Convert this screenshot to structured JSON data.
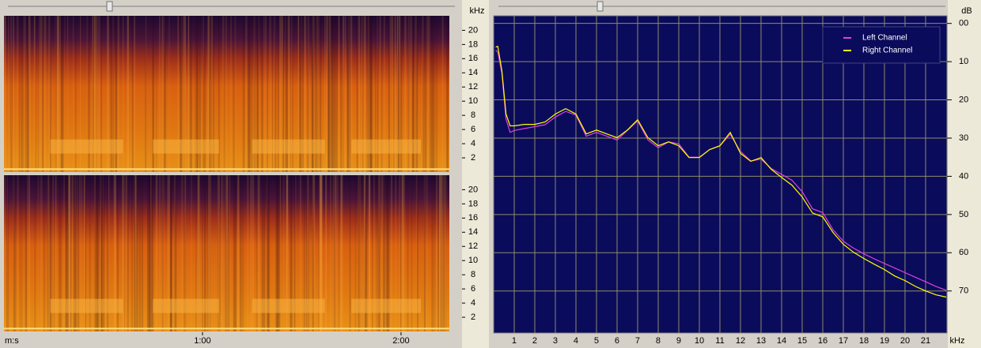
{
  "chart_data": [
    {
      "type": "spectrogram",
      "y_label": "kHz",
      "x_label": "m:s",
      "xlim": [
        0,
        134.6
      ],
      "xticks": [
        {
          "value": 60,
          "label": "1:00"
        },
        {
          "value": 120,
          "label": "2:00"
        }
      ],
      "ylim": [
        0,
        22.05
      ],
      "yticks": [
        2,
        4,
        6,
        8,
        10,
        12,
        14,
        16,
        18,
        20
      ]
    },
    {
      "type": "line",
      "y_label": "dB",
      "x_label": "kHz",
      "xlim": [
        0,
        22.04
      ],
      "xticks": [
        1,
        2,
        3,
        4,
        5,
        6,
        7,
        8,
        9,
        10,
        11,
        12,
        13,
        14,
        15,
        16,
        17,
        18,
        19,
        20,
        21
      ],
      "ylim": [
        -2,
        81
      ],
      "yticks": [
        {
          "value": 0,
          "label": "00"
        },
        10,
        20,
        30,
        40,
        50,
        60,
        70
      ],
      "grid": true,
      "legend": "top-right",
      "x": [
        0.1,
        0.2,
        0.4,
        0.6,
        0.8,
        1.0,
        1.5,
        2.0,
        2.5,
        3.0,
        3.5,
        4.0,
        4.5,
        5.0,
        5.5,
        6.0,
        6.5,
        7.0,
        7.5,
        8.0,
        8.5,
        9.0,
        9.5,
        10.0,
        10.5,
        11.0,
        11.5,
        12.0,
        12.5,
        13.0,
        13.5,
        14.0,
        14.5,
        15.0,
        15.5,
        16.0,
        16.5,
        17.0,
        17.5,
        18.0,
        18.5,
        19.0,
        19.5,
        20.0,
        20.5,
        21.0,
        21.5,
        22.0
      ],
      "series": [
        {
          "name": "Left Channel",
          "color": "#e040e0",
          "values": [
            7,
            7.5,
            13,
            25,
            28.5,
            28,
            27.5,
            27,
            26.5,
            24.5,
            23,
            24,
            29.5,
            28.5,
            29.5,
            30.5,
            28,
            25.5,
            30.5,
            32.5,
            31,
            31.5,
            35,
            35,
            33,
            32,
            29,
            33.5,
            36,
            35.5,
            38,
            39.5,
            41,
            44,
            48.5,
            49.5,
            54,
            57,
            58.8,
            60.3,
            61.6,
            62.8,
            64,
            65.2,
            66.4,
            67.6,
            68.8,
            69.8
          ]
        },
        {
          "name": "Right Channel",
          "color": "#ffff00",
          "values": [
            6.2,
            6,
            12.4,
            23.7,
            26.8,
            26.8,
            26.4,
            26.4,
            25.8,
            23.7,
            22.3,
            23.7,
            28.9,
            27.9,
            28.9,
            29.9,
            27.9,
            25.2,
            29.9,
            32,
            31,
            32,
            35.1,
            35.1,
            33,
            32,
            28.5,
            34,
            36.1,
            35.1,
            38.2,
            40.3,
            42.3,
            45.4,
            49.6,
            50.6,
            54.7,
            57.8,
            59.9,
            61.5,
            63,
            64.4,
            66.1,
            67.3,
            68.8,
            70,
            71,
            71.6
          ]
        }
      ]
    }
  ]
}
